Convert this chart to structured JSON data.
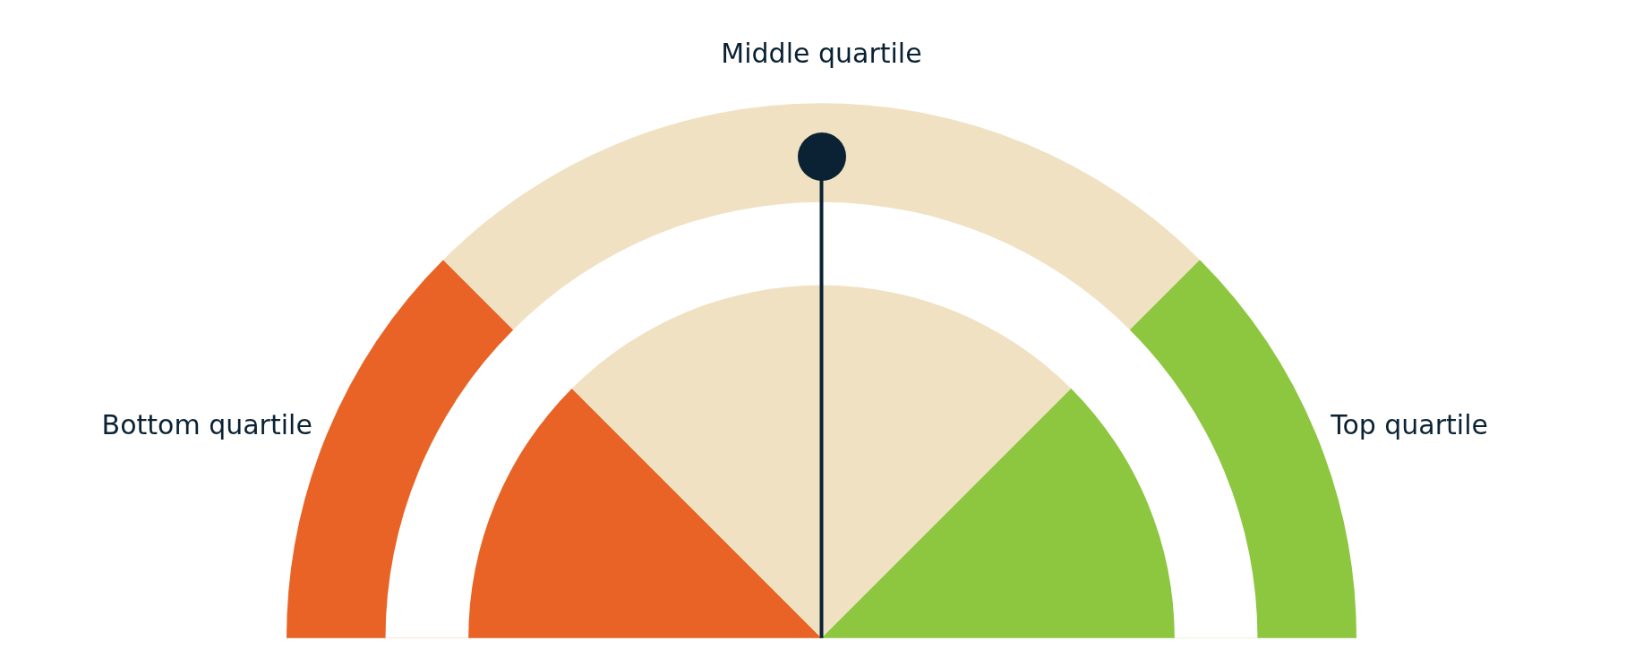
{
  "chart_data": {
    "type": "pie",
    "categories": [
      "Bottom quartile",
      "Middle quartile",
      "Top quartile"
    ],
    "values": [
      25,
      50,
      25
    ],
    "colors": [
      "#e86325",
      "#f0e1c2",
      "#8dc63f"
    ],
    "needle": "Middle quartile"
  }
}
